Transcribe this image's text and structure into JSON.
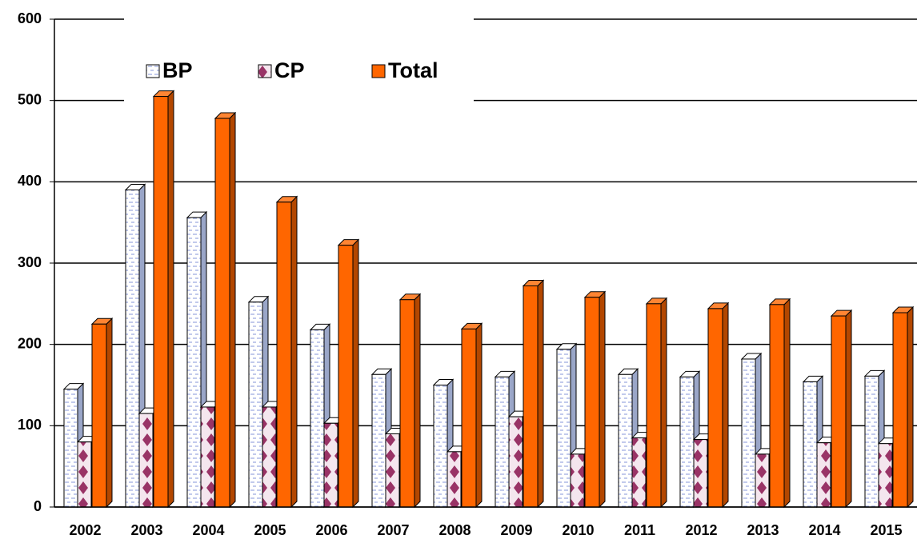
{
  "chart_data": {
    "type": "bar",
    "categories": [
      "2002",
      "2003",
      "2004",
      "2005",
      "2006",
      "2007",
      "2008",
      "2009",
      "2010",
      "2011",
      "2012",
      "2013",
      "2014",
      "2015"
    ],
    "series": [
      {
        "name": "BP",
        "color": "#ffffff",
        "values": [
          145,
          390,
          356,
          252,
          218,
          163,
          150,
          160,
          194,
          163,
          160,
          182,
          154,
          161
        ]
      },
      {
        "name": "CP",
        "color": "#993366",
        "values": [
          80,
          115,
          123,
          123,
          103,
          90,
          68,
          111,
          65,
          85,
          83,
          65,
          79,
          78
        ]
      },
      {
        "name": "Total",
        "color": "#ff6600",
        "values": [
          225,
          505,
          478,
          375,
          322,
          255,
          219,
          272,
          258,
          250,
          244,
          249,
          235,
          239
        ]
      }
    ],
    "ylim": [
      0,
      600
    ],
    "yticks": [
      0,
      100,
      200,
      300,
      400,
      500,
      600
    ],
    "grid": true,
    "legend": "top-left"
  }
}
